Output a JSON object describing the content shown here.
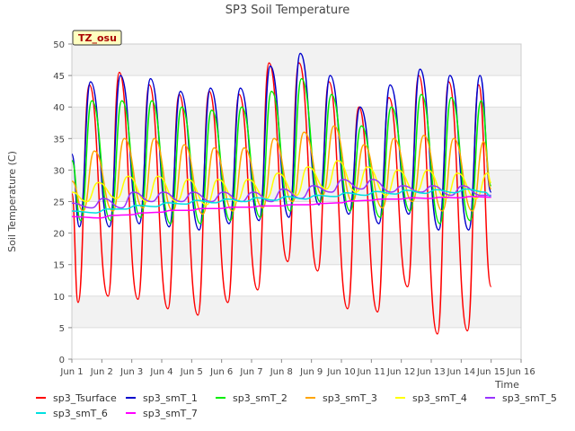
{
  "chart_data": {
    "type": "line",
    "title": "SP3 Soil Temperature",
    "xlabel": "Time",
    "ylabel": "Soil Temperature (C)",
    "badge": "TZ_osu",
    "xlim": [
      1.0,
      16.0
    ],
    "ylim": [
      0,
      50
    ],
    "x_ticks": [
      1,
      2,
      3,
      4,
      5,
      6,
      7,
      8,
      9,
      10,
      11,
      12,
      13,
      14,
      15,
      16
    ],
    "x_tick_labels": [
      "Jun 1",
      "Jun 2",
      "Jun 3",
      "Jun 4",
      "Jun 5",
      "Jun 6",
      "Jun 7",
      "Jun 8",
      "Jun 9",
      "Jun 10",
      "Jun 11",
      "Jun 12",
      "Jun 13",
      "Jun 14",
      "Jun 15",
      "Jun 16"
    ],
    "y_ticks": [
      0,
      5,
      10,
      15,
      20,
      25,
      30,
      35,
      40,
      45,
      50
    ],
    "grid": "horizontal alternating bands",
    "legend_position": "bottom",
    "days": [
      1,
      2,
      3,
      4,
      5,
      6,
      7,
      8,
      9,
      10,
      11,
      12,
      13,
      14
    ],
    "diurnal_peak_hour": 14,
    "series": [
      {
        "name": "sp3_Tsurface",
        "color": "#ff0000",
        "lag_hours": 0,
        "min": [
          9.0,
          10.0,
          9.5,
          8.0,
          7.0,
          9.0,
          11.0,
          15.5,
          14.0,
          8.0,
          7.5,
          11.5,
          4.0,
          4.5
        ],
        "max": [
          43.5,
          45.5,
          43.5,
          42.0,
          42.5,
          42.0,
          47.0,
          47.0,
          44.0,
          40.0,
          41.5,
          45.0,
          44.0,
          43.5
        ],
        "end": 11.5
      },
      {
        "name": "sp3_smT_1",
        "color": "#0000cc",
        "lag_hours": 1,
        "min": [
          21.0,
          21.0,
          21.5,
          21.0,
          20.5,
          21.5,
          22.0,
          22.5,
          24.5,
          23.0,
          21.5,
          23.0,
          20.5,
          20.5
        ],
        "max": [
          44.0,
          45.0,
          44.5,
          42.5,
          43.0,
          43.0,
          46.5,
          48.5,
          45.0,
          40.0,
          43.5,
          46.0,
          45.0,
          45.0
        ],
        "end": 26.5
      },
      {
        "name": "sp3_smT_2",
        "color": "#00ee00",
        "lag_hours": 2,
        "min": [
          22.0,
          22.0,
          22.5,
          21.5,
          21.5,
          22.0,
          22.5,
          23.5,
          25.0,
          23.5,
          22.5,
          23.5,
          21.5,
          22.0
        ],
        "max": [
          41.0,
          41.0,
          41.0,
          40.0,
          39.5,
          40.0,
          42.5,
          44.5,
          42.0,
          37.0,
          40.0,
          42.0,
          41.5,
          41.0
        ],
        "end": 27.5
      },
      {
        "name": "sp3_smT_3",
        "color": "#ffa500",
        "lag_hours": 4,
        "min": [
          23.5,
          23.5,
          24.0,
          23.5,
          23.0,
          23.5,
          24.0,
          25.0,
          26.0,
          25.0,
          24.0,
          25.0,
          23.5,
          23.5
        ],
        "max": [
          33.0,
          35.0,
          35.0,
          34.0,
          33.5,
          33.5,
          35.0,
          36.0,
          37.0,
          34.0,
          35.0,
          35.5,
          35.0,
          34.5
        ],
        "end": 27.0
      },
      {
        "name": "sp3_smT_4",
        "color": "#ffff00",
        "lag_hours": 7,
        "min": [
          25.0,
          25.5,
          25.0,
          25.0,
          24.5,
          25.0,
          25.5,
          26.0,
          27.0,
          26.5,
          26.0,
          26.5,
          25.5,
          25.5
        ],
        "max": [
          28.0,
          29.0,
          29.0,
          28.5,
          28.5,
          28.5,
          29.5,
          30.5,
          31.5,
          30.5,
          30.0,
          30.0,
          29.5,
          29.5
        ],
        "end": 28.0
      },
      {
        "name": "sp3_smT_5",
        "color": "#9933ff",
        "lag_hours": 11,
        "min": [
          24.0,
          24.0,
          25.0,
          25.0,
          25.0,
          25.0,
          25.0,
          25.5,
          26.5,
          27.0,
          26.5,
          26.5,
          26.0,
          26.0
        ],
        "max": [
          25.5,
          26.5,
          26.5,
          26.5,
          26.5,
          26.5,
          27.0,
          27.5,
          28.5,
          28.5,
          27.5,
          27.5,
          27.5,
          27.5
        ],
        "end": 26.0
      },
      {
        "name": "sp3_smT_6",
        "color": "#00e0e0",
        "lag_hours": 14,
        "min": [
          23.2,
          23.8,
          24.2,
          24.6,
          24.8,
          25.0,
          25.2,
          25.4,
          25.8,
          26.0,
          26.2,
          26.3,
          26.4,
          26.5
        ],
        "max": [
          23.8,
          24.4,
          24.8,
          25.2,
          25.4,
          25.6,
          25.8,
          26.0,
          26.4,
          26.6,
          26.8,
          26.9,
          27.0,
          27.0
        ],
        "end": 25.8
      },
      {
        "name": "sp3_smT_7",
        "color": "#ff00ff",
        "lag_hours": 18,
        "min": [
          22.4,
          22.9,
          23.3,
          23.6,
          23.9,
          24.1,
          24.3,
          24.5,
          24.8,
          25.2,
          25.4,
          25.5,
          25.6,
          25.7
        ],
        "max": [
          22.8,
          23.2,
          23.6,
          23.9,
          24.1,
          24.3,
          24.5,
          24.7,
          25.1,
          25.4,
          25.6,
          25.7,
          25.8,
          25.9
        ],
        "end": 25.7
      }
    ]
  }
}
